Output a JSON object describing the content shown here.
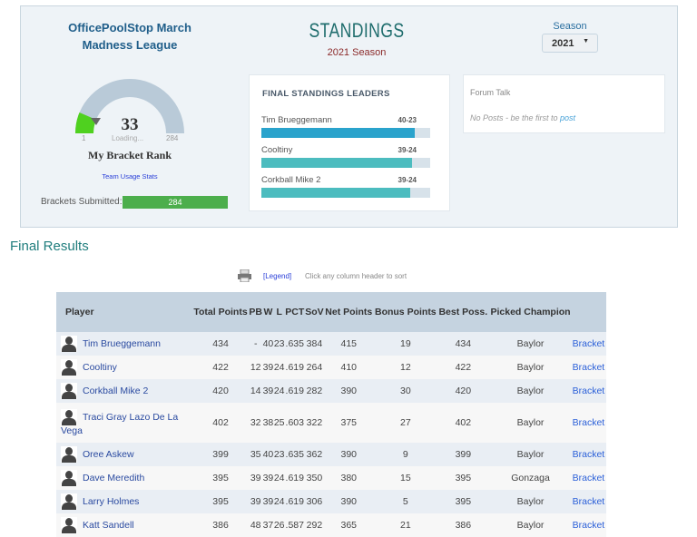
{
  "header": {
    "league": "OfficePoolStop March Madness League",
    "title": "STANDINGS",
    "season_sub": "2021 Season",
    "season_label": "Season",
    "season_value": "2021"
  },
  "gauge": {
    "rank": "33",
    "min": "1",
    "max": "284",
    "loading": "Loading...",
    "label": "My Bracket Rank",
    "fraction": 0.116,
    "usage_link": "Team Usage Stats"
  },
  "submitted": {
    "label": "Brackets Submitted:",
    "value": "284"
  },
  "leaders": {
    "title": "FINAL STANDINGS LEADERS",
    "items": [
      {
        "name": "Tim Brueggemann",
        "record": "40-23",
        "pct": 91,
        "color": "#2aa3cc"
      },
      {
        "name": "Cooltiny",
        "record": "39-24",
        "pct": 89,
        "color": "#4cbcbf"
      },
      {
        "name": "Corkball Mike 2",
        "record": "39-24",
        "pct": 88,
        "color": "#4cbcbf"
      }
    ]
  },
  "forum": {
    "title": "Forum Talk",
    "empty": "No Posts - be the first to ",
    "link": "post"
  },
  "results": {
    "title": "Final Results",
    "legend": "[Legend]",
    "hint": "Click any column header to sort",
    "columns": [
      "Player",
      "Total Points",
      "PB",
      "W",
      "L",
      "PCT",
      "SoV",
      "Net Points",
      "Bonus Points",
      "Best Poss.",
      "Picked Champion",
      ""
    ],
    "rows": [
      [
        "Tim Brueggemann",
        "434",
        "-",
        "40",
        "23",
        ".635",
        "384",
        "415",
        "19",
        "434",
        "Baylor",
        "Bracket"
      ],
      [
        "Cooltiny",
        "422",
        "12",
        "39",
        "24",
        ".619",
        "264",
        "410",
        "12",
        "422",
        "Baylor",
        "Bracket"
      ],
      [
        "Corkball Mike 2",
        "420",
        "14",
        "39",
        "24",
        ".619",
        "282",
        "390",
        "30",
        "420",
        "Baylor",
        "Bracket"
      ],
      [
        "Traci Gray Lazo De La Vega",
        "402",
        "32",
        "38",
        "25",
        ".603",
        "322",
        "375",
        "27",
        "402",
        "Baylor",
        "Bracket"
      ],
      [
        "Oree Askew",
        "399",
        "35",
        "40",
        "23",
        ".635",
        "362",
        "390",
        "9",
        "399",
        "Baylor",
        "Bracket"
      ],
      [
        "Dave Meredith",
        "395",
        "39",
        "39",
        "24",
        ".619",
        "350",
        "380",
        "15",
        "395",
        "Gonzaga",
        "Bracket"
      ],
      [
        "Larry Holmes",
        "395",
        "39",
        "39",
        "24",
        ".619",
        "306",
        "390",
        "5",
        "395",
        "Baylor",
        "Bracket"
      ],
      [
        "Katt Sandell",
        "386",
        "48",
        "37",
        "26",
        ".587",
        "292",
        "365",
        "21",
        "386",
        "Baylor",
        "Bracket"
      ]
    ]
  }
}
